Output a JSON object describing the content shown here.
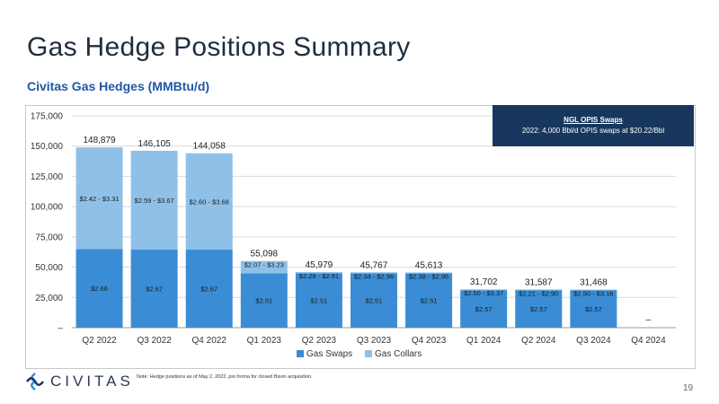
{
  "page": {
    "title": "Gas Hedge Positions Summary",
    "subtitle": "Civitas Gas Hedges (MMBtu/d)",
    "note": "Note: Hedge positions as of May 2, 2022, pro forma for closed Bison acquisition.",
    "page_number": "19",
    "logo_text": "CIVITAS"
  },
  "ngl_box": {
    "title": "NGL OPIS Swaps",
    "text": "2022: 4,000 Bbl/d OPIS swaps at $20.22/Bbl"
  },
  "chart_data": {
    "type": "bar",
    "stacked": true,
    "categories": [
      "Q2 2022",
      "Q3 2022",
      "Q4 2022",
      "Q1 2023",
      "Q2 2023",
      "Q3 2023",
      "Q4 2023",
      "Q1 2024",
      "Q2 2024",
      "Q3 2024",
      "Q4 2024"
    ],
    "series": [
      {
        "name": "Gas Swaps",
        "color": "#3a8dd4",
        "values": [
          65000,
          64500,
          64500,
          45000,
          45000,
          45000,
          45000,
          31000,
          31000,
          31000,
          0
        ],
        "labels": [
          "$2.66",
          "$2.67",
          "$2.67",
          "$2.51",
          "$2.51",
          "$2.51",
          "$2.51",
          "$2.57",
          "$2.57",
          "$2.57",
          ""
        ]
      },
      {
        "name": "Gas Collars",
        "color": "#8fc1e8",
        "values": [
          83879,
          81605,
          79558,
          10098,
          979,
          767,
          613,
          702,
          587,
          468,
          0
        ],
        "labels": [
          "$2.42 - $3.31",
          "$2.59 - $3.67",
          "$2.60 - $3.68",
          "$2.07 - $3.23",
          "$2.28 - $2.91",
          "$2.34 - $2.96",
          "$2.38 - $2.96",
          "$2.50 - $3.37",
          "$2.21 - $2.90",
          "$2.50 - $3.16",
          ""
        ]
      }
    ],
    "totals": [
      "148,879",
      "146,105",
      "144,058",
      "55,098",
      "45,979",
      "45,767",
      "45,613",
      "31,702",
      "31,587",
      "31,468",
      "–"
    ],
    "ylim": [
      0,
      175000
    ],
    "yticks": [
      0,
      25000,
      50000,
      75000,
      100000,
      125000,
      150000,
      175000
    ],
    "ytick_labels": [
      "–",
      "25,000",
      "50,000",
      "75,000",
      "100,000",
      "125,000",
      "150,000",
      "175,000"
    ],
    "legend_position": "bottom",
    "grid": true
  }
}
